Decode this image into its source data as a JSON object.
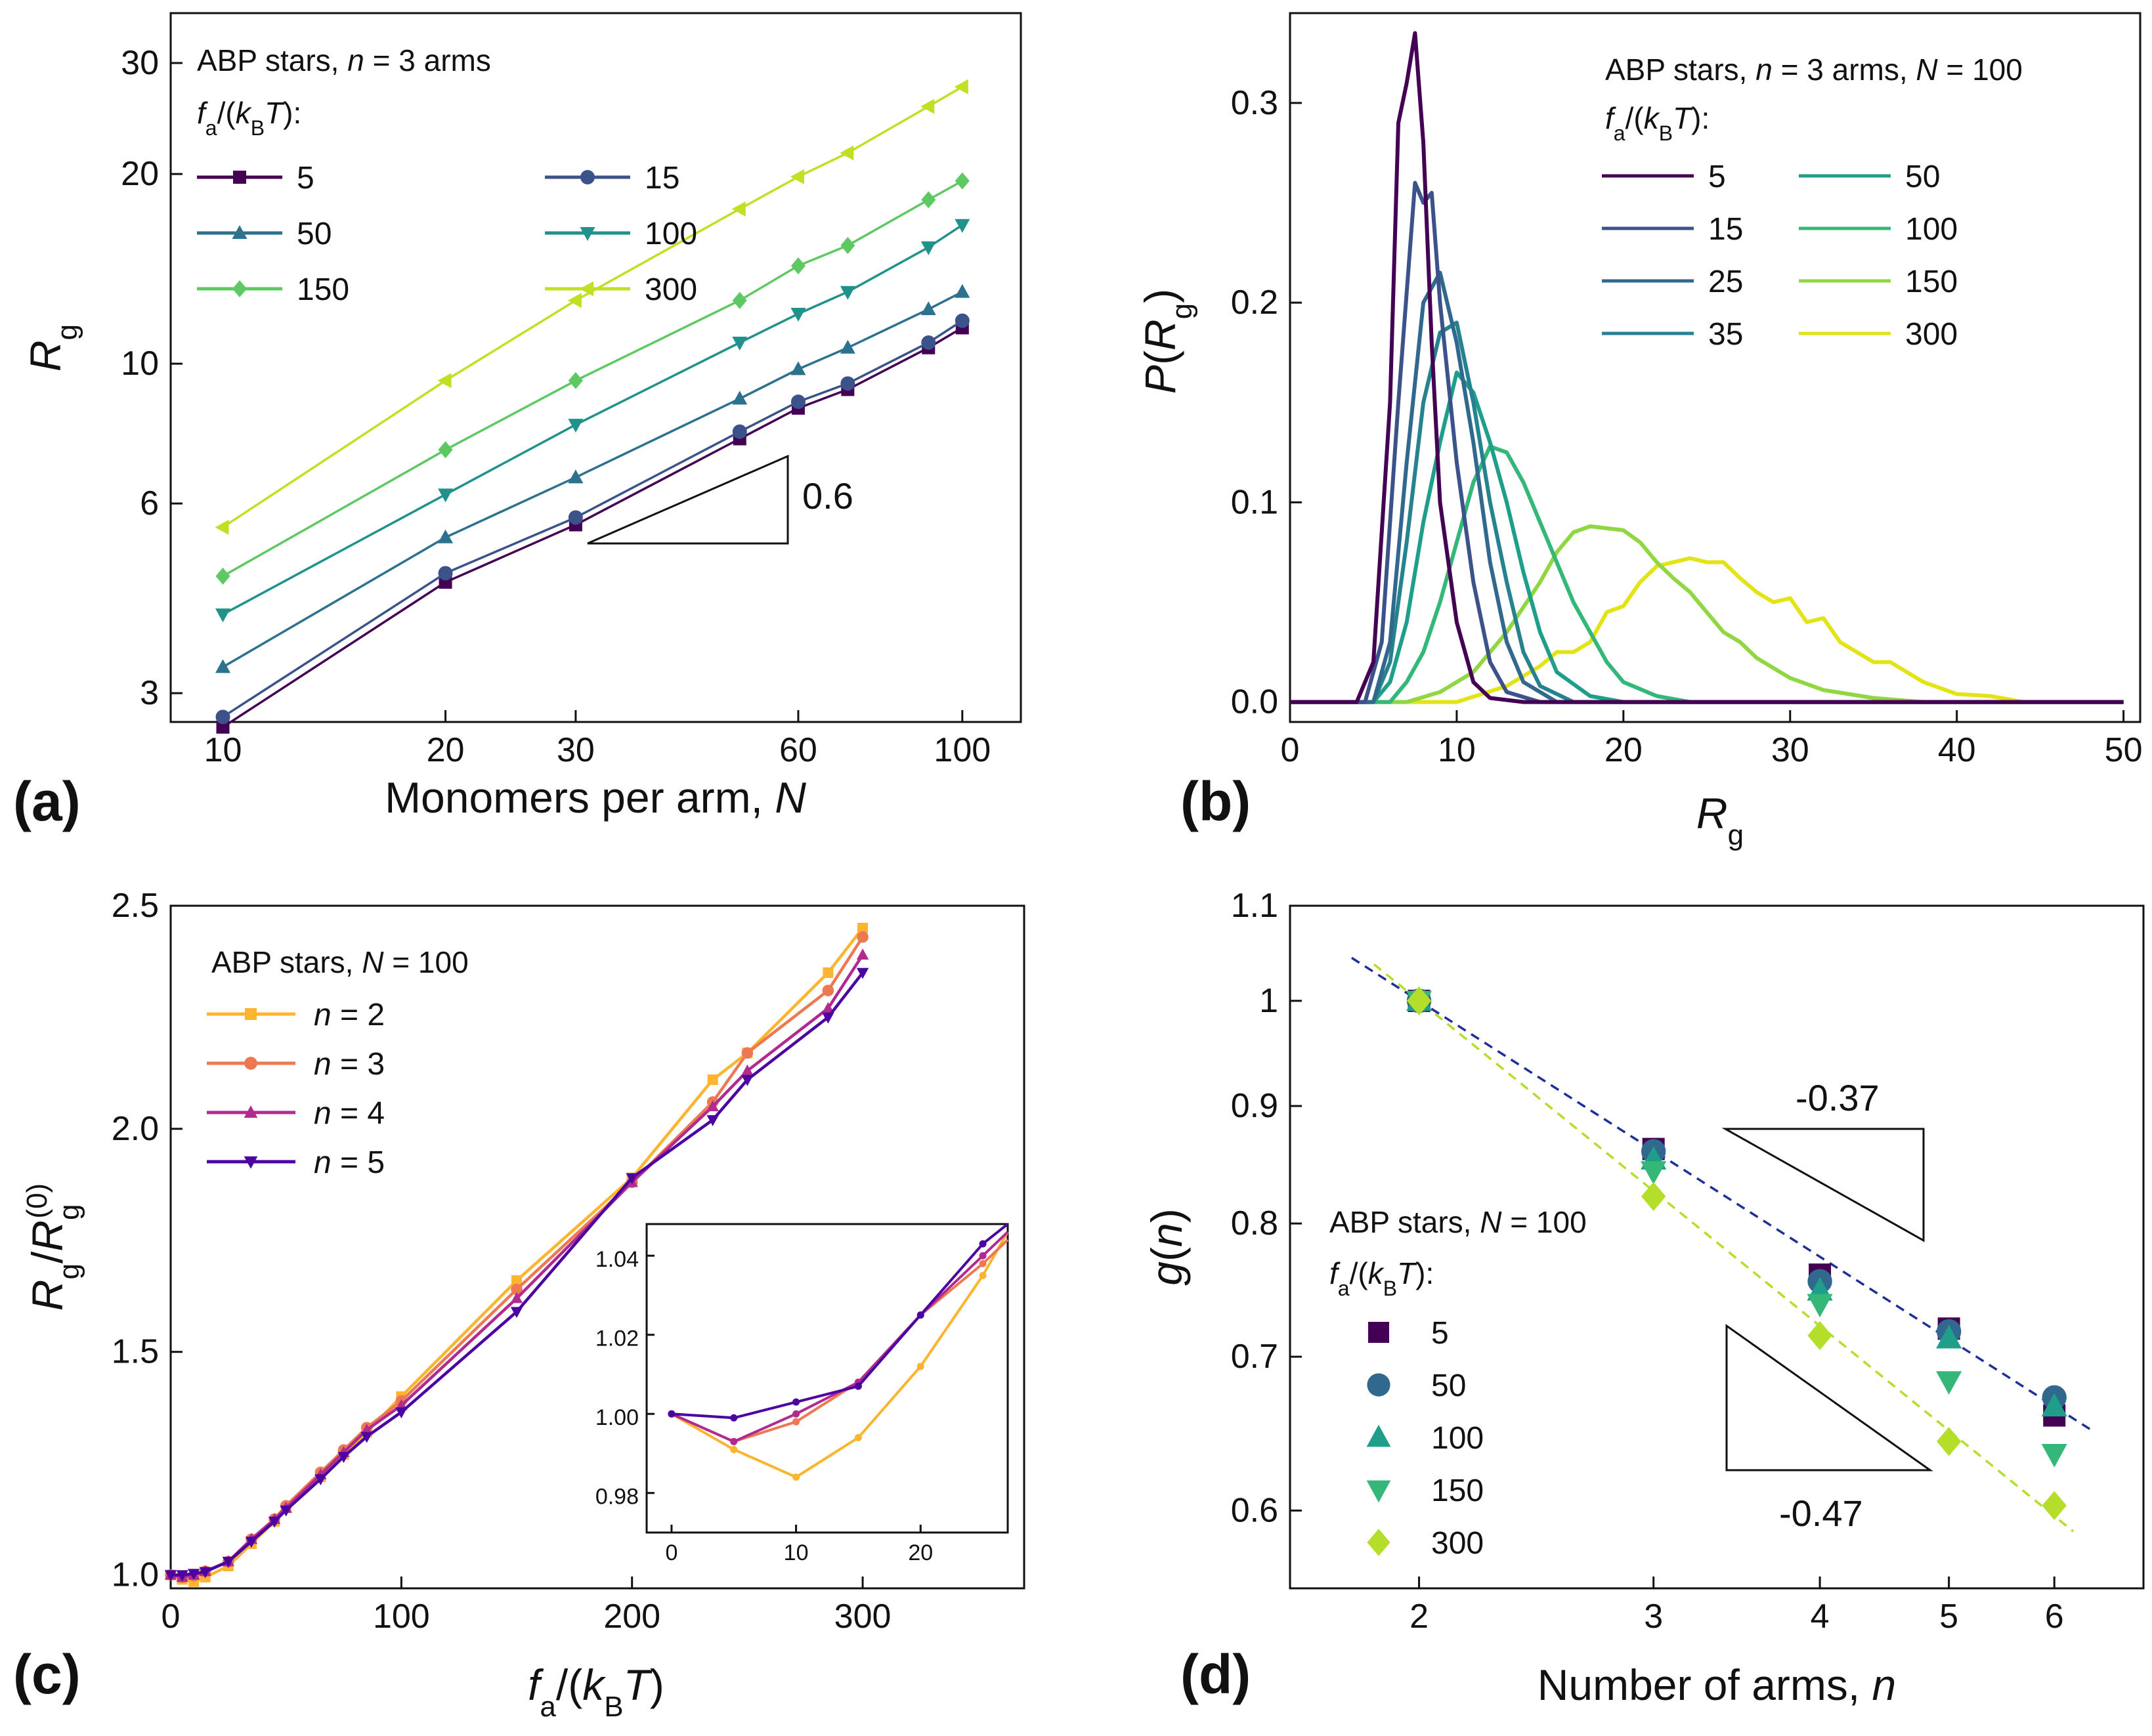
{
  "figure": {
    "panels": [
      "(a)",
      "(b)",
      "(c)",
      "(d)"
    ]
  },
  "colors": {
    "viridis": [
      "#440154",
      "#3b528b",
      "#2c728e",
      "#21918c",
      "#28ae80",
      "#5ec962",
      "#addc30",
      "#d8e219",
      "#fde725"
    ],
    "plasma_n2": "#fdb42f",
    "plasma_n3": "#ed7953",
    "plasma_n4": "#b12a90",
    "plasma_n5": "#4b03a1"
  },
  "chart_data": [
    {
      "panel": "(a)",
      "type": "line",
      "xscale": "log",
      "yscale": "log",
      "xlabel_main": "Monomers per arm, ",
      "xlabel_var": "N",
      "ylabel_main": "R",
      "ylabel_sub": "g",
      "xlim": [
        8.5,
        120
      ],
      "ylim": [
        2.7,
        36
      ],
      "xticks": [
        10,
        20,
        30,
        60,
        100
      ],
      "xticklabels": [
        "10",
        "20",
        "30",
        "60",
        "100"
      ],
      "yticks": [
        3,
        6,
        10,
        20,
        30
      ],
      "yticklabels": [
        "3",
        "6",
        "10",
        "20",
        "30"
      ],
      "legend": {
        "line1_main": "ABP stars, ",
        "line1_var": "n",
        "line1_rest": " = 3 arms",
        "line2": "f_a/(k_B T):"
      },
      "x": [
        10,
        20,
        30,
        50,
        60,
        70,
        90,
        100
      ],
      "series": [
        {
          "name": "5",
          "marker": "square",
          "color": "#440154",
          "values": [
            2.65,
            4.5,
            5.55,
            7.6,
            8.5,
            9.1,
            10.6,
            11.4
          ]
        },
        {
          "name": "15",
          "marker": "circle",
          "color": "#3b528b",
          "values": [
            2.75,
            4.65,
            5.7,
            7.8,
            8.7,
            9.3,
            10.8,
            11.7
          ]
        },
        {
          "name": "50",
          "marker": "triangle-up",
          "color": "#2c728e",
          "values": [
            3.3,
            5.3,
            6.6,
            8.8,
            9.8,
            10.6,
            12.2,
            13.0
          ]
        },
        {
          "name": "100",
          "marker": "triangle-down",
          "color": "#21918c",
          "values": [
            4.0,
            6.2,
            8.0,
            10.8,
            12.0,
            13.0,
            15.3,
            16.6
          ]
        },
        {
          "name": "150",
          "marker": "diamond",
          "color": "#5ec962",
          "values": [
            4.6,
            7.3,
            9.4,
            12.6,
            14.3,
            15.4,
            18.2,
            19.5
          ]
        },
        {
          "name": "300",
          "marker": "triangle-left",
          "color": "#c2df23",
          "values": [
            5.5,
            9.4,
            12.6,
            17.6,
            19.8,
            21.6,
            25.6,
            27.5
          ]
        }
      ],
      "slope_annotation": "0.6"
    },
    {
      "panel": "(b)",
      "type": "line",
      "xlabel_main": "R",
      "xlabel_sub": "g",
      "ylabel_main": "P(R",
      "ylabel_sub": "g",
      "ylabel_end": ")",
      "xlim": [
        0,
        51
      ],
      "ylim": [
        -0.01,
        0.345
      ],
      "xticks": [
        0,
        10,
        20,
        30,
        40,
        50
      ],
      "xticklabels": [
        "0",
        "10",
        "20",
        "30",
        "40",
        "50"
      ],
      "yticks": [
        0.0,
        0.1,
        0.2,
        0.3
      ],
      "yticklabels": [
        "0.0",
        "0.1",
        "0.2",
        "0.3"
      ],
      "legend": {
        "line1_main": "ABP stars, ",
        "line1_var": "n",
        "line1_rest": " = 3 arms, ",
        "line1_var2": "N",
        "line1_rest2": " = 100",
        "line2": "f_a/(k_B T):"
      },
      "series": [
        {
          "name": "5",
          "color": "#440154",
          "x": [
            0,
            4,
            5,
            6,
            6.5,
            7,
            7.5,
            8,
            8.5,
            9,
            10,
            11,
            12,
            14,
            50
          ],
          "y": [
            0,
            0,
            0.02,
            0.15,
            0.29,
            0.31,
            0.335,
            0.28,
            0.18,
            0.1,
            0.04,
            0.01,
            0.002,
            0,
            0
          ]
        },
        {
          "name": "15",
          "color": "#3b528b",
          "x": [
            0,
            4.5,
            5.5,
            6.5,
            7.5,
            8,
            8.5,
            9,
            10,
            11,
            12,
            13,
            15,
            50
          ],
          "y": [
            0,
            0,
            0.03,
            0.15,
            0.26,
            0.25,
            0.255,
            0.2,
            0.12,
            0.06,
            0.02,
            0.005,
            0,
            0
          ]
        },
        {
          "name": "25",
          "color": "#31688e",
          "x": [
            0,
            5,
            6,
            7,
            8,
            9,
            10,
            11,
            12,
            13,
            14,
            16,
            50
          ],
          "y": [
            0,
            0,
            0.03,
            0.12,
            0.2,
            0.215,
            0.18,
            0.13,
            0.07,
            0.03,
            0.01,
            0,
            0
          ]
        },
        {
          "name": "35",
          "color": "#26828e",
          "x": [
            0,
            5,
            6,
            7,
            8,
            9,
            10,
            11,
            12,
            13,
            14,
            15,
            17,
            50
          ],
          "y": [
            0,
            0,
            0.02,
            0.08,
            0.15,
            0.185,
            0.19,
            0.15,
            0.1,
            0.06,
            0.025,
            0.008,
            0,
            0
          ]
        },
        {
          "name": "50",
          "color": "#1f9e89",
          "x": [
            0,
            5,
            6,
            7,
            8,
            9,
            10,
            11,
            12,
            13,
            14,
            15,
            16,
            18,
            20,
            50
          ],
          "y": [
            0,
            0,
            0.01,
            0.04,
            0.09,
            0.13,
            0.165,
            0.155,
            0.13,
            0.1,
            0.065,
            0.035,
            0.015,
            0.003,
            0,
            0
          ]
        },
        {
          "name": "100",
          "color": "#35b779",
          "x": [
            0,
            6,
            7,
            8,
            9,
            10,
            11,
            12,
            13,
            14,
            15,
            16,
            17,
            18,
            19,
            20,
            22,
            24,
            50
          ],
          "y": [
            0,
            0,
            0.01,
            0.025,
            0.05,
            0.08,
            0.11,
            0.128,
            0.125,
            0.11,
            0.09,
            0.07,
            0.05,
            0.035,
            0.02,
            0.01,
            0.003,
            0,
            0
          ]
        },
        {
          "name": "150",
          "color": "#90d743",
          "x": [
            0,
            7,
            9,
            11,
            13,
            15,
            16,
            17,
            18,
            19,
            20,
            21,
            22,
            23,
            24,
            25,
            26,
            27,
            28,
            30,
            32,
            35,
            38,
            50
          ],
          "y": [
            0,
            0,
            0.005,
            0.015,
            0.035,
            0.06,
            0.075,
            0.085,
            0.088,
            0.087,
            0.086,
            0.08,
            0.07,
            0.062,
            0.055,
            0.045,
            0.035,
            0.03,
            0.022,
            0.012,
            0.006,
            0.002,
            0,
            0
          ]
        },
        {
          "name": "300",
          "color": "#e3e418",
          "x": [
            0,
            10,
            13,
            15,
            16,
            17,
            18,
            19,
            20,
            21,
            22,
            23,
            24,
            25,
            26,
            27,
            28,
            29,
            30,
            31,
            32,
            33,
            34,
            35,
            36,
            37,
            38,
            40,
            42,
            44,
            50
          ],
          "y": [
            0,
            0,
            0.008,
            0.018,
            0.025,
            0.025,
            0.03,
            0.045,
            0.048,
            0.06,
            0.068,
            0.07,
            0.072,
            0.07,
            0.07,
            0.062,
            0.055,
            0.05,
            0.052,
            0.04,
            0.042,
            0.03,
            0.025,
            0.02,
            0.02,
            0.015,
            0.01,
            0.004,
            0.003,
            0,
            0
          ]
        }
      ]
    },
    {
      "panel": "(c)",
      "type": "line",
      "xlabel_main": "f",
      "xlabel_sub": "a",
      "xlabel_mid": "/(k",
      "xlabel_sub2": "B",
      "xlabel_end": "T)",
      "ylabel_main": "R",
      "ylabel_sub": "g",
      "ylabel_mid": "/R",
      "ylabel_sub2": "g",
      "ylabel_sup": "(0)",
      "xlim": [
        0,
        370
      ],
      "ylim": [
        0.97,
        2.5
      ],
      "xticks": [
        0,
        100,
        200,
        300
      ],
      "xticklabels": [
        "0",
        "100",
        "200",
        "300"
      ],
      "yticks": [
        1.0,
        1.5,
        2.0,
        2.5
      ],
      "yticklabels": [
        "1.0",
        "1.5",
        "2.0",
        "2.5"
      ],
      "legend": {
        "line1_main": "ABP stars, ",
        "line1_var": "N",
        "line1_rest": " = 100"
      },
      "x": [
        0,
        5,
        10,
        15,
        25,
        35,
        45,
        50,
        65,
        75,
        85,
        100,
        150,
        200,
        235,
        250,
        285,
        300
      ],
      "series": [
        {
          "name": "n = 2",
          "var": "n",
          "num": " = 2",
          "marker": "square",
          "color": "#fdb42f",
          "values": [
            1.0,
            0.99,
            0.985,
            0.995,
            1.02,
            1.07,
            1.12,
            1.15,
            1.22,
            1.27,
            1.32,
            1.4,
            1.66,
            1.89,
            2.11,
            2.17,
            2.35,
            2.45
          ]
        },
        {
          "name": "n = 3",
          "var": "n",
          "num": " = 3",
          "marker": "circle",
          "color": "#ed7953",
          "values": [
            1.0,
            0.995,
            0.998,
            1.008,
            1.03,
            1.08,
            1.125,
            1.155,
            1.23,
            1.28,
            1.33,
            1.39,
            1.64,
            1.88,
            2.06,
            2.17,
            2.31,
            2.43
          ]
        },
        {
          "name": "n = 4",
          "var": "n",
          "num": " = 4",
          "marker": "triangle-up",
          "color": "#b12a90",
          "values": [
            1.0,
            0.995,
            1.0,
            1.008,
            1.03,
            1.08,
            1.125,
            1.15,
            1.225,
            1.275,
            1.325,
            1.38,
            1.62,
            1.88,
            2.05,
            2.13,
            2.27,
            2.39
          ]
        },
        {
          "name": "n = 5",
          "var": "n",
          "num": " = 5",
          "marker": "triangle-down",
          "color": "#4b03a1",
          "values": [
            1.0,
            1.0,
            1.003,
            1.007,
            1.03,
            1.075,
            1.12,
            1.145,
            1.215,
            1.265,
            1.31,
            1.365,
            1.59,
            1.89,
            2.02,
            2.11,
            2.25,
            2.35
          ]
        }
      ],
      "inset": {
        "xlim": [
          -2,
          27
        ],
        "ylim": [
          0.97,
          1.048
        ],
        "xticks": [
          0,
          10,
          20
        ],
        "xticklabels": [
          "0",
          "10",
          "20"
        ],
        "yticks": [
          0.98,
          1.0,
          1.02,
          1.04
        ],
        "yticklabels": [
          "0.98",
          "1.00",
          "1.02",
          "1.04"
        ],
        "x": [
          0,
          5,
          10,
          15,
          20,
          25,
          27
        ],
        "series": [
          {
            "name": "n = 2",
            "color": "#fdb42f",
            "values": [
              1.0,
              0.991,
              0.984,
              0.994,
              1.012,
              1.035,
              1.046
            ]
          },
          {
            "name": "n = 3",
            "color": "#ed7953",
            "values": [
              1.0,
              0.993,
              0.998,
              1.008,
              1.025,
              1.038,
              1.044
            ]
          },
          {
            "name": "n = 4",
            "color": "#b12a90",
            "values": [
              1.0,
              0.993,
              1.0,
              1.008,
              1.025,
              1.04,
              1.046
            ]
          },
          {
            "name": "n = 5",
            "color": "#4b03a1",
            "values": [
              1.0,
              0.999,
              1.003,
              1.007,
              1.025,
              1.043,
              1.048
            ]
          }
        ]
      }
    },
    {
      "panel": "(d)",
      "type": "scatter",
      "xscale": "log",
      "yscale": "log",
      "xlabel_main": "Number of arms, ",
      "xlabel_var": "n",
      "ylabel_main": "g(",
      "ylabel_var": "n",
      "ylabel_end": ")",
      "xlim": [
        1.6,
        7.0
      ],
      "ylim": [
        0.555,
        1.1
      ],
      "xticks": [
        2,
        3,
        4,
        5,
        6
      ],
      "xticklabels": [
        "2",
        "3",
        "4",
        "5",
        "6"
      ],
      "yticks": [
        0.6,
        0.7,
        0.8,
        0.9,
        1.0,
        1.1
      ],
      "yticklabels": [
        "0.6",
        "0.7",
        "0.8",
        "0.9",
        "1",
        "1.1"
      ],
      "legend": {
        "line1_main": "ABP stars, ",
        "line1_var": "N",
        "line1_rest": " = 100",
        "line2": "f_a/(k_B T):"
      },
      "x": [
        2,
        3,
        4,
        5,
        6
      ],
      "series": [
        {
          "name": "5",
          "marker": "square",
          "color": "#440154",
          "values": [
            1.0,
            0.862,
            0.76,
            0.72,
            0.66
          ]
        },
        {
          "name": "50",
          "marker": "circle",
          "color": "#31688e",
          "values": [
            1.0,
            0.86,
            0.755,
            0.718,
            0.672
          ]
        },
        {
          "name": "100",
          "marker": "triangle-up",
          "color": "#1f9e89",
          "values": [
            1.0,
            0.853,
            0.748,
            0.713,
            0.666
          ]
        },
        {
          "name": "150",
          "marker": "triangle-down",
          "color": "#35b779",
          "values": [
            1.0,
            0.843,
            0.738,
            0.683,
            0.635
          ]
        },
        {
          "name": "300",
          "marker": "diamond",
          "color": "#b5de2b",
          "values": [
            1.0,
            0.822,
            0.715,
            0.643,
            0.603
          ]
        }
      ],
      "fits": [
        {
          "slope": -0.37,
          "color": "#1f2f99",
          "x_range": [
            1.78,
            6.4
          ]
        },
        {
          "slope": -0.47,
          "color": "#b5de2b",
          "x_range": [
            1.85,
            6.2
          ]
        }
      ],
      "slope_annotations": [
        "-0.37",
        "-0.47"
      ]
    }
  ]
}
